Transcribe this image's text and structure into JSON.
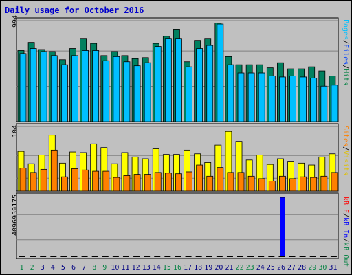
{
  "chart_data": {
    "type": "bar",
    "title": "Daily usage for October 2016",
    "x": [
      "1",
      "2",
      "3",
      "4",
      "5",
      "6",
      "7",
      "8",
      "9",
      "10",
      "11",
      "12",
      "13",
      "14",
      "15",
      "16",
      "17",
      "18",
      "19",
      "20",
      "21",
      "22",
      "23",
      "24",
      "25",
      "26",
      "27",
      "28",
      "29",
      "30",
      "31"
    ],
    "weekend_days": [
      "1",
      "2",
      "8",
      "9",
      "15",
      "16",
      "22",
      "23",
      "29",
      "30"
    ],
    "panels": [
      {
        "name": "top",
        "max_label": "994",
        "ylim": [
          0,
          994
        ],
        "legend": [
          {
            "text": "Hits",
            "color": "#008040"
          },
          {
            "text": "Files",
            "color": "#0040ff"
          },
          {
            "text": "Pages",
            "color": "#00c0ff"
          }
        ],
        "series": [
          {
            "name": "Hits",
            "color": "#00805f",
            "values": [
              700,
              780,
              710,
              690,
              610,
              720,
              820,
              770,
              650,
              690,
              650,
              620,
              630,
              770,
              840,
              910,
              590,
              800,
              820,
              970,
              640,
              560,
              560,
              560,
              530,
              580,
              520,
              520,
              540,
              500,
              450
            ]
          },
          {
            "name": "Files",
            "color": "#00c0ff",
            "values": [
              670,
              720,
              690,
              650,
              560,
              650,
              700,
              700,
              600,
              640,
              590,
              550,
              580,
              740,
              820,
              820,
              540,
              720,
              750,
              960,
              560,
              480,
              480,
              480,
              450,
              440,
              450,
              440,
              430,
              350,
              360
            ]
          }
        ]
      },
      {
        "name": "middle",
        "max_label": "104",
        "ylim": [
          0,
          104
        ],
        "legend": [
          {
            "text": "Visits",
            "color": "#e0c000"
          },
          {
            "text": "Sites",
            "color": "#ff8000"
          }
        ],
        "series": [
          {
            "name": "Visits",
            "color": "#ffff00",
            "values": [
              64,
              44,
              58,
              90,
              45,
              63,
              62,
              76,
              70,
              44,
              62,
              55,
              52,
              68,
              59,
              59,
              66,
              60,
              46,
              74,
              96,
              80,
              50,
              58,
              43,
              52,
              48,
              45,
              42,
              55,
              60
            ]
          },
          {
            "name": "Sites",
            "color": "#ff8000",
            "values": [
              37,
              30,
              35,
              66,
              23,
              36,
              34,
              32,
              32,
              22,
              25,
              27,
              27,
              30,
              29,
              28,
              31,
              42,
              24,
              38,
              30,
              30,
              24,
              20,
              16,
              24,
              20,
              23,
              22,
              24,
              30
            ]
          }
        ]
      },
      {
        "name": "bottom",
        "max_label": "4096959175",
        "ylim": [
          0,
          4096959175
        ],
        "legend": [
          {
            "text": "kB In",
            "color": "#0000ff"
          },
          {
            "text": "kB Out",
            "color": "#008040"
          },
          {
            "text": "kB F",
            "color": "#ff0000"
          }
        ],
        "series": [
          {
            "name": "kB In",
            "color": "#0000ff",
            "values": [
              0,
              0,
              0,
              0,
              0,
              0,
              0,
              0,
              0,
              0,
              0,
              0,
              0,
              0,
              0,
              0,
              0,
              0,
              0,
              0,
              0,
              0,
              0,
              0,
              0,
              4096959175,
              0,
              0,
              0,
              0,
              0
            ]
          }
        ]
      }
    ]
  }
}
